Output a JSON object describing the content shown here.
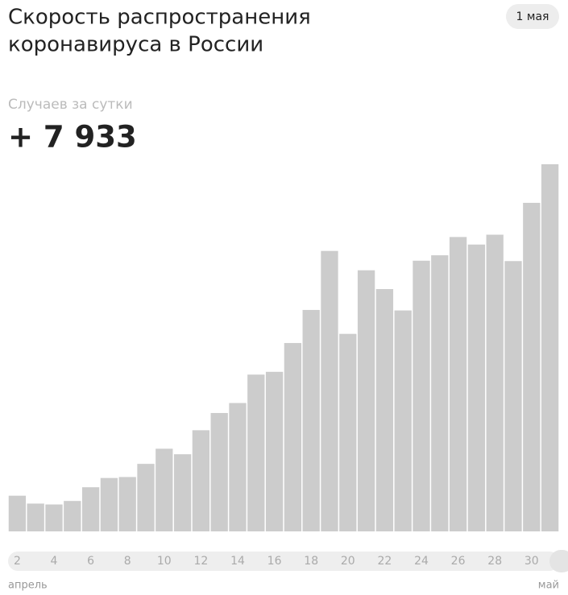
{
  "chart_data": {
    "type": "bar",
    "title": "Скорость распространения коронавируса в России",
    "title_lines": [
      "Скорость распространения",
      "коронавируса в России"
    ],
    "date_badge": "1 мая",
    "subtitle": "Случаев за сутки",
    "headline": "+ 7 933",
    "categories": [
      "2",
      null,
      "4",
      null,
      "6",
      null,
      "8",
      null,
      "10",
      null,
      "12",
      null,
      "14",
      null,
      "16",
      null,
      "18",
      null,
      "20",
      null,
      "22",
      null,
      "24",
      null,
      "26",
      null,
      "28",
      null,
      "30",
      null
    ],
    "values": [
      771,
      601,
      582,
      658,
      954,
      1154,
      1175,
      1459,
      1786,
      1667,
      2186,
      2558,
      2774,
      3388,
      3448,
      4070,
      4785,
      6060,
      4268,
      5642,
      5236,
      4774,
      5849,
      5966,
      6361,
      6198,
      6411,
      5841,
      7099,
      7933
    ],
    "month_labels": [
      "апрель",
      "май"
    ],
    "color": "#cccccc"
  }
}
